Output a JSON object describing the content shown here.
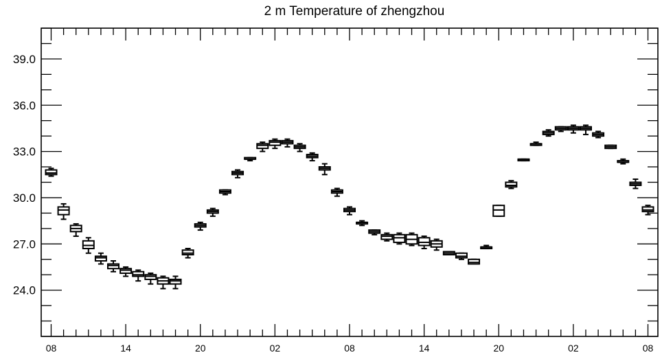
{
  "chart_data": {
    "type": "box",
    "title": "2 m Temperature of zhengzhou",
    "xlabel": "",
    "ylabel": "",
    "ylim": [
      21.0,
      41.0
    ],
    "y_ticks": [
      24.0,
      27.0,
      30.0,
      33.0,
      36.0,
      39.0
    ],
    "y_tick_labels": [
      "24.0",
      "27.0",
      "30.0",
      "33.0",
      "36.0",
      "39.0"
    ],
    "x_tick_labels": [
      "08",
      "14",
      "20",
      "02",
      "08",
      "14",
      "20",
      "02",
      "08"
    ],
    "x_tick_steps": [
      0,
      6,
      12,
      18,
      24,
      30,
      36,
      42,
      48
    ],
    "xlim": [
      -0.8,
      48.8
    ],
    "grid": false,
    "series": [
      {
        "boxes": [
          {
            "step": 0,
            "min": 31.4,
            "q1": 31.5,
            "median": 31.6,
            "q3": 31.8,
            "max": 31.9
          },
          {
            "step": 1,
            "min": 28.6,
            "q1": 28.9,
            "median": 29.2,
            "q3": 29.4,
            "max": 29.6
          },
          {
            "step": 2,
            "min": 27.5,
            "q1": 27.8,
            "median": 28.0,
            "q3": 28.2,
            "max": 28.3
          },
          {
            "step": 3,
            "min": 26.4,
            "q1": 26.7,
            "median": 26.9,
            "q3": 27.2,
            "max": 27.4
          },
          {
            "step": 4,
            "min": 25.7,
            "q1": 25.9,
            "median": 26.1,
            "q3": 26.2,
            "max": 26.4
          },
          {
            "step": 5,
            "min": 25.2,
            "q1": 25.4,
            "median": 25.6,
            "q3": 25.7,
            "max": 25.9
          },
          {
            "step": 6,
            "min": 24.9,
            "q1": 25.1,
            "median": 25.3,
            "q3": 25.4,
            "max": 25.5
          },
          {
            "step": 7,
            "min": 24.6,
            "q1": 24.9,
            "median": 25.0,
            "q3": 25.2,
            "max": 25.3
          },
          {
            "step": 8,
            "min": 24.4,
            "q1": 24.7,
            "median": 24.9,
            "q3": 25.0,
            "max": 25.1
          },
          {
            "step": 9,
            "min": 24.1,
            "q1": 24.4,
            "median": 24.6,
            "q3": 24.8,
            "max": 24.9
          },
          {
            "step": 10,
            "min": 24.1,
            "q1": 24.4,
            "median": 24.6,
            "q3": 24.7,
            "max": 24.9
          },
          {
            "step": 11,
            "min": 26.1,
            "q1": 26.3,
            "median": 26.4,
            "q3": 26.6,
            "max": 26.7
          },
          {
            "step": 12,
            "min": 27.9,
            "q1": 28.1,
            "median": 28.2,
            "q3": 28.3,
            "max": 28.4
          },
          {
            "step": 13,
            "min": 28.8,
            "q1": 29.0,
            "median": 29.1,
            "q3": 29.2,
            "max": 29.3
          },
          {
            "step": 14,
            "min": 30.2,
            "q1": 30.3,
            "median": 30.4,
            "q3": 30.5,
            "max": 30.5
          },
          {
            "step": 15,
            "min": 31.3,
            "q1": 31.5,
            "median": 31.6,
            "q3": 31.7,
            "max": 31.8
          },
          {
            "step": 16,
            "min": 32.4,
            "q1": 32.5,
            "median": 32.5,
            "q3": 32.6,
            "max": 32.6
          },
          {
            "step": 17,
            "min": 33.0,
            "q1": 33.2,
            "median": 33.4,
            "q3": 33.5,
            "max": 33.6
          },
          {
            "step": 18,
            "min": 33.2,
            "q1": 33.4,
            "median": 33.6,
            "q3": 33.7,
            "max": 33.8
          },
          {
            "step": 19,
            "min": 33.3,
            "q1": 33.5,
            "median": 33.6,
            "q3": 33.7,
            "max": 33.8
          },
          {
            "step": 20,
            "min": 33.0,
            "q1": 33.2,
            "median": 33.3,
            "q3": 33.4,
            "max": 33.5
          },
          {
            "step": 21,
            "min": 32.4,
            "q1": 32.6,
            "median": 32.7,
            "q3": 32.8,
            "max": 32.9
          },
          {
            "step": 22,
            "min": 31.5,
            "q1": 31.8,
            "median": 31.9,
            "q3": 32.0,
            "max": 32.2
          },
          {
            "step": 23,
            "min": 30.1,
            "q1": 30.3,
            "median": 30.4,
            "q3": 30.5,
            "max": 30.6
          },
          {
            "step": 24,
            "min": 28.9,
            "q1": 29.1,
            "median": 29.2,
            "q3": 29.3,
            "max": 29.4
          },
          {
            "step": 25,
            "min": 28.2,
            "q1": 28.3,
            "median": 28.4,
            "q3": 28.4,
            "max": 28.5
          },
          {
            "step": 26,
            "min": 27.6,
            "q1": 27.7,
            "median": 27.8,
            "q3": 27.9,
            "max": 27.9
          },
          {
            "step": 27,
            "min": 27.2,
            "q1": 27.3,
            "median": 27.5,
            "q3": 27.6,
            "max": 27.7
          },
          {
            "step": 28,
            "min": 27.0,
            "q1": 27.1,
            "median": 27.4,
            "q3": 27.6,
            "max": 27.7
          },
          {
            "step": 29,
            "min": 26.9,
            "q1": 27.0,
            "median": 27.3,
            "q3": 27.6,
            "max": 27.7
          },
          {
            "step": 30,
            "min": 26.7,
            "q1": 26.9,
            "median": 27.1,
            "q3": 27.4,
            "max": 27.5
          },
          {
            "step": 31,
            "min": 26.6,
            "q1": 26.8,
            "median": 27.0,
            "q3": 27.2,
            "max": 27.3
          },
          {
            "step": 32,
            "min": 26.3,
            "q1": 26.3,
            "median": 26.4,
            "q3": 26.5,
            "max": 26.5
          },
          {
            "step": 33,
            "min": 26.0,
            "q1": 26.1,
            "median": 26.2,
            "q3": 26.4,
            "max": 26.4
          },
          {
            "step": 34,
            "min": 25.7,
            "q1": 25.7,
            "median": 25.8,
            "q3": 26.0,
            "max": 26.0
          },
          {
            "step": 35,
            "min": 26.7,
            "q1": 26.7,
            "median": 26.8,
            "q3": 26.8,
            "max": 26.9
          },
          {
            "step": 36,
            "min": 28.8,
            "q1": 28.8,
            "median": 29.2,
            "q3": 29.5,
            "max": 29.5
          },
          {
            "step": 37,
            "min": 30.6,
            "q1": 30.7,
            "median": 30.8,
            "q3": 31.0,
            "max": 31.1
          },
          {
            "step": 38,
            "min": 32.4,
            "q1": 32.4,
            "median": 32.5,
            "q3": 32.5,
            "max": 32.5
          },
          {
            "step": 39,
            "min": 33.4,
            "q1": 33.4,
            "median": 33.5,
            "q3": 33.5,
            "max": 33.6
          },
          {
            "step": 40,
            "min": 34.0,
            "q1": 34.1,
            "median": 34.2,
            "q3": 34.3,
            "max": 34.4
          },
          {
            "step": 41,
            "min": 34.3,
            "q1": 34.4,
            "median": 34.5,
            "q3": 34.6,
            "max": 34.6
          },
          {
            "step": 42,
            "min": 34.2,
            "q1": 34.4,
            "median": 34.5,
            "q3": 34.6,
            "max": 34.7
          },
          {
            "step": 43,
            "min": 34.1,
            "q1": 34.4,
            "median": 34.5,
            "q3": 34.6,
            "max": 34.7
          },
          {
            "step": 44,
            "min": 33.9,
            "q1": 34.0,
            "median": 34.1,
            "q3": 34.2,
            "max": 34.3
          },
          {
            "step": 45,
            "min": 33.2,
            "q1": 33.2,
            "median": 33.3,
            "q3": 33.4,
            "max": 33.4
          },
          {
            "step": 46,
            "min": 32.2,
            "q1": 32.3,
            "median": 32.3,
            "q3": 32.4,
            "max": 32.5
          },
          {
            "step": 47,
            "min": 30.6,
            "q1": 30.8,
            "median": 30.9,
            "q3": 31.0,
            "max": 31.2
          },
          {
            "step": 48,
            "min": 28.9,
            "q1": 29.1,
            "median": 29.2,
            "q3": 29.4,
            "max": 29.5
          }
        ]
      }
    ]
  }
}
